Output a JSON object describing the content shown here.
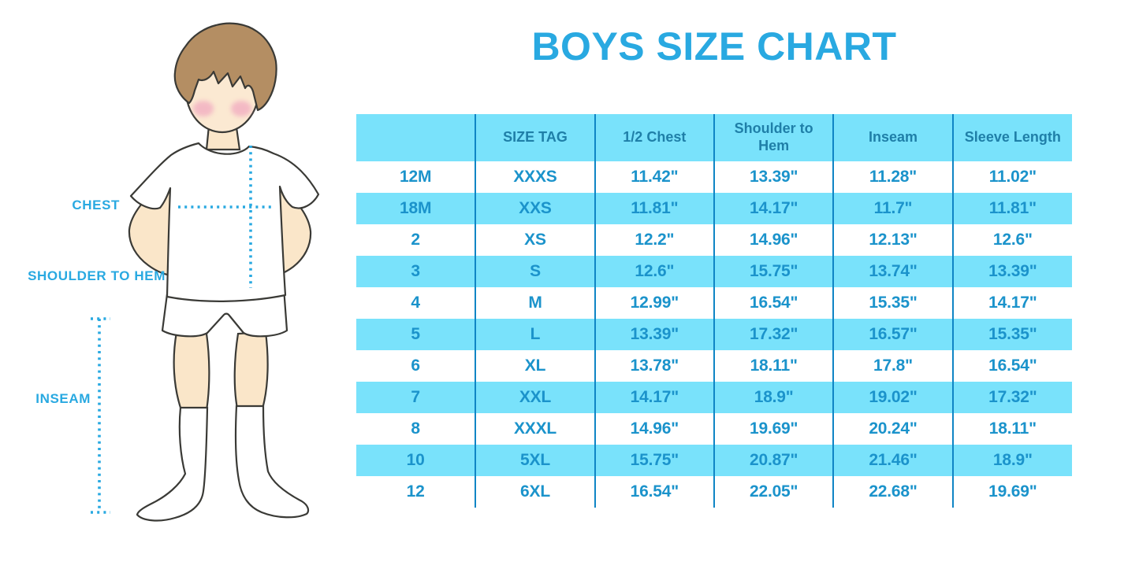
{
  "title": "BOYS SIZE CHART",
  "figure": {
    "illustration": "boy-in-tshirt-shorts-and-socks",
    "chest_label": "CHEST",
    "shoulder_to_hem_label": "SHOULDER TO HEM",
    "inseam_label": "INSEAM"
  },
  "colors": {
    "title_blue": "#29A9E1",
    "label_blue": "#29A9E1",
    "dotted_line_blue": "#29A9E1",
    "row_cyan": "#79E2FB",
    "divider_blue": "#0F85C5",
    "header_text": "#1F7FA8",
    "cell_text": "#1B93CB",
    "hair_brown": "#B48E63",
    "skin": "#FAE6C9",
    "cheek_pink": "#F2AEC1"
  },
  "chart_data": {
    "type": "table",
    "title": "BOYS SIZE CHART",
    "columns": [
      "",
      "SIZE TAG",
      "1/2 Chest",
      "Shoulder to Hem",
      "Inseam",
      "Sleeve Length"
    ],
    "rows": [
      [
        "12M",
        "XXXS",
        "11.42\"",
        "13.39\"",
        "11.28\"",
        "11.02\""
      ],
      [
        "18M",
        "XXS",
        "11.81\"",
        "14.17\"",
        "11.7\"",
        "11.81\""
      ],
      [
        "2",
        "XS",
        "12.2\"",
        "14.96\"",
        "12.13\"",
        "12.6\""
      ],
      [
        "3",
        "S",
        "12.6\"",
        "15.75\"",
        "13.74\"",
        "13.39\""
      ],
      [
        "4",
        "M",
        "12.99\"",
        "16.54\"",
        "15.35\"",
        "14.17\""
      ],
      [
        "5",
        "L",
        "13.39\"",
        "17.32\"",
        "16.57\"",
        "15.35\""
      ],
      [
        "6",
        "XL",
        "13.78\"",
        "18.11\"",
        "17.8\"",
        "16.54\""
      ],
      [
        "7",
        "XXL",
        "14.17\"",
        "18.9\"",
        "19.02\"",
        "17.32\""
      ],
      [
        "8",
        "XXXL",
        "14.96\"",
        "19.69\"",
        "20.24\"",
        "18.11\""
      ],
      [
        "10",
        "5XL",
        "15.75\"",
        "20.87\"",
        "21.46\"",
        "18.9\""
      ],
      [
        "12",
        "6XL",
        "16.54\"",
        "22.05\"",
        "22.68\"",
        "19.69\""
      ]
    ],
    "row_striping": "white/cyan alternating, header cyan",
    "legend_position": "none",
    "grid": "vertical column dividers only"
  }
}
